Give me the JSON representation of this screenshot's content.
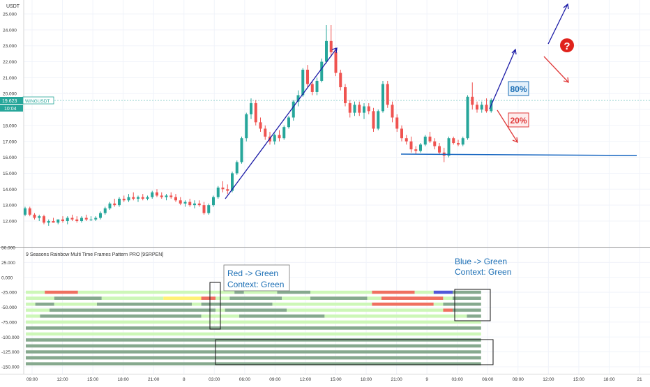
{
  "currency": "USDT",
  "price_tag": {
    "price": "19.623",
    "symbol": "WINGUSDT",
    "countdown": "10:04"
  },
  "indicator_title": "9 Seasons Rainbow Multi Time Frames Pattern PRO [9SRPEN]",
  "annotations": {
    "red_green": [
      "Red -> Green",
      "Context: Green"
    ],
    "blue_green": [
      "Blue -> Green",
      "Context: Green"
    ],
    "pct_up": "80%",
    "pct_down": "20%",
    "question": "?"
  },
  "colors": {
    "up": "#26a69a",
    "down": "#ef5350",
    "arrow": "#1a1aa6",
    "line": "#1565c0",
    "bar_light": "#cdf7b8",
    "bar_dark": "#86a98e",
    "bar_red": "#ef7060",
    "bar_yellow": "#fff176",
    "bar_blue": "#5057d8",
    "label": "#1c6fb5"
  },
  "chart_data": [
    {
      "type": "candlestick",
      "name": "WINGUSDT",
      "y_unit": "USDT",
      "ylim": [
        11.0,
        25.0
      ],
      "y_ticks": [
        "12.000",
        "13.000",
        "14.000",
        "15.000",
        "16.000",
        "17.000",
        "18.000",
        "19.000",
        "20.000",
        "21.000",
        "22.000",
        "23.000",
        "24.000",
        "25.000"
      ],
      "x_ticks": [
        "09:00",
        "12:00",
        "15:00",
        "18:00",
        "21:00",
        "8",
        "03:00",
        "06:00",
        "09:00",
        "12:00",
        "15:00",
        "18:00",
        "21:00",
        "9",
        "03:00",
        "06:00",
        "09:00",
        "12:00",
        "15:00",
        "18:00",
        "21"
      ],
      "horizontal_line": 16.1,
      "last_price": 19.623,
      "candles": [
        {
          "o": 12.4,
          "h": 12.9,
          "l": 12.3,
          "c": 12.8
        },
        {
          "o": 12.8,
          "h": 12.9,
          "l": 12.3,
          "c": 12.4
        },
        {
          "o": 12.4,
          "h": 12.5,
          "l": 12.1,
          "c": 12.2
        },
        {
          "o": 12.2,
          "h": 12.4,
          "l": 12.0,
          "c": 12.3
        },
        {
          "o": 12.3,
          "h": 12.4,
          "l": 11.8,
          "c": 11.9
        },
        {
          "o": 11.9,
          "h": 12.1,
          "l": 11.7,
          "c": 12.0
        },
        {
          "o": 12.0,
          "h": 12.2,
          "l": 11.9,
          "c": 11.9
        },
        {
          "o": 11.9,
          "h": 12.1,
          "l": 11.8,
          "c": 12.1
        },
        {
          "o": 12.1,
          "h": 12.3,
          "l": 11.9,
          "c": 12.0
        },
        {
          "o": 12.0,
          "h": 12.3,
          "l": 11.8,
          "c": 12.2
        },
        {
          "o": 12.2,
          "h": 12.4,
          "l": 12.0,
          "c": 12.1
        },
        {
          "o": 12.1,
          "h": 12.3,
          "l": 11.9,
          "c": 12.0
        },
        {
          "o": 12.0,
          "h": 12.3,
          "l": 11.9,
          "c": 12.2
        },
        {
          "o": 12.2,
          "h": 12.4,
          "l": 12.0,
          "c": 12.1
        },
        {
          "o": 12.1,
          "h": 12.3,
          "l": 12.0,
          "c": 12.1
        },
        {
          "o": 12.1,
          "h": 12.3,
          "l": 12.0,
          "c": 12.2
        },
        {
          "o": 12.2,
          "h": 12.6,
          "l": 12.1,
          "c": 12.5
        },
        {
          "o": 12.5,
          "h": 12.9,
          "l": 12.4,
          "c": 12.8
        },
        {
          "o": 12.8,
          "h": 13.2,
          "l": 12.7,
          "c": 13.1
        },
        {
          "o": 13.1,
          "h": 13.4,
          "l": 12.9,
          "c": 13.0
        },
        {
          "o": 13.0,
          "h": 13.5,
          "l": 12.9,
          "c": 13.4
        },
        {
          "o": 13.4,
          "h": 13.6,
          "l": 13.2,
          "c": 13.3
        },
        {
          "o": 13.3,
          "h": 13.7,
          "l": 13.2,
          "c": 13.5
        },
        {
          "o": 13.5,
          "h": 13.8,
          "l": 13.3,
          "c": 13.4
        },
        {
          "o": 13.4,
          "h": 13.6,
          "l": 13.2,
          "c": 13.5
        },
        {
          "o": 13.5,
          "h": 13.7,
          "l": 13.3,
          "c": 13.4
        },
        {
          "o": 13.4,
          "h": 13.6,
          "l": 13.3,
          "c": 13.5
        },
        {
          "o": 13.5,
          "h": 13.9,
          "l": 13.4,
          "c": 13.8
        },
        {
          "o": 13.8,
          "h": 14.0,
          "l": 13.5,
          "c": 13.6
        },
        {
          "o": 13.6,
          "h": 13.8,
          "l": 13.4,
          "c": 13.5
        },
        {
          "o": 13.5,
          "h": 13.7,
          "l": 13.3,
          "c": 13.6
        },
        {
          "o": 13.6,
          "h": 13.8,
          "l": 13.4,
          "c": 13.5
        },
        {
          "o": 13.5,
          "h": 13.7,
          "l": 13.2,
          "c": 13.3
        },
        {
          "o": 13.3,
          "h": 13.5,
          "l": 13.0,
          "c": 13.1
        },
        {
          "o": 13.1,
          "h": 13.3,
          "l": 12.9,
          "c": 13.2
        },
        {
          "o": 13.2,
          "h": 13.4,
          "l": 12.9,
          "c": 13.0
        },
        {
          "o": 13.0,
          "h": 13.3,
          "l": 12.8,
          "c": 13.1
        },
        {
          "o": 13.1,
          "h": 13.3,
          "l": 12.9,
          "c": 13.0
        },
        {
          "o": 13.0,
          "h": 13.2,
          "l": 12.4,
          "c": 12.5
        },
        {
          "o": 12.5,
          "h": 13.1,
          "l": 12.4,
          "c": 13.0
        },
        {
          "o": 13.0,
          "h": 13.6,
          "l": 12.9,
          "c": 13.5
        },
        {
          "o": 13.5,
          "h": 14.2,
          "l": 13.4,
          "c": 14.1
        },
        {
          "o": 14.1,
          "h": 14.5,
          "l": 13.8,
          "c": 14.0
        },
        {
          "o": 14.0,
          "h": 14.3,
          "l": 13.7,
          "c": 13.9
        },
        {
          "o": 13.9,
          "h": 15.1,
          "l": 13.8,
          "c": 15.0
        },
        {
          "o": 15.0,
          "h": 15.8,
          "l": 14.9,
          "c": 15.7
        },
        {
          "o": 15.7,
          "h": 17.3,
          "l": 15.6,
          "c": 17.2
        },
        {
          "o": 17.2,
          "h": 18.8,
          "l": 17.0,
          "c": 18.7
        },
        {
          "o": 18.7,
          "h": 19.7,
          "l": 18.4,
          "c": 19.4
        },
        {
          "o": 19.4,
          "h": 19.6,
          "l": 18.0,
          "c": 18.2
        },
        {
          "o": 18.2,
          "h": 18.5,
          "l": 17.6,
          "c": 17.8
        },
        {
          "o": 17.8,
          "h": 18.0,
          "l": 17.1,
          "c": 17.3
        },
        {
          "o": 17.3,
          "h": 17.6,
          "l": 16.8,
          "c": 17.0
        },
        {
          "o": 17.0,
          "h": 17.5,
          "l": 16.8,
          "c": 17.4
        },
        {
          "o": 17.4,
          "h": 17.7,
          "l": 17.0,
          "c": 17.2
        },
        {
          "o": 17.2,
          "h": 18.0,
          "l": 17.1,
          "c": 17.9
        },
        {
          "o": 17.9,
          "h": 18.6,
          "l": 17.8,
          "c": 18.5
        },
        {
          "o": 18.5,
          "h": 19.6,
          "l": 18.3,
          "c": 19.5
        },
        {
          "o": 19.5,
          "h": 20.2,
          "l": 19.2,
          "c": 19.9
        },
        {
          "o": 19.9,
          "h": 21.6,
          "l": 19.8,
          "c": 21.5
        },
        {
          "o": 21.5,
          "h": 21.8,
          "l": 20.4,
          "c": 20.6
        },
        {
          "o": 20.6,
          "h": 20.8,
          "l": 19.9,
          "c": 20.1
        },
        {
          "o": 20.1,
          "h": 21.0,
          "l": 19.9,
          "c": 20.8
        },
        {
          "o": 20.8,
          "h": 22.2,
          "l": 20.7,
          "c": 22.0
        },
        {
          "o": 22.0,
          "h": 24.3,
          "l": 21.9,
          "c": 23.3
        },
        {
          "o": 23.3,
          "h": 24.3,
          "l": 22.3,
          "c": 22.6
        },
        {
          "o": 22.6,
          "h": 22.9,
          "l": 21.1,
          "c": 21.3
        },
        {
          "o": 21.3,
          "h": 21.5,
          "l": 20.2,
          "c": 20.4
        },
        {
          "o": 20.4,
          "h": 20.6,
          "l": 19.2,
          "c": 19.4
        },
        {
          "o": 19.4,
          "h": 19.6,
          "l": 18.5,
          "c": 18.8
        },
        {
          "o": 18.8,
          "h": 19.5,
          "l": 18.6,
          "c": 19.3
        },
        {
          "o": 19.3,
          "h": 19.5,
          "l": 18.6,
          "c": 18.8
        },
        {
          "o": 18.8,
          "h": 19.4,
          "l": 18.4,
          "c": 19.2
        },
        {
          "o": 19.2,
          "h": 19.4,
          "l": 18.7,
          "c": 18.9
        },
        {
          "o": 18.9,
          "h": 19.1,
          "l": 17.6,
          "c": 17.8
        },
        {
          "o": 17.8,
          "h": 19.0,
          "l": 17.7,
          "c": 18.9
        },
        {
          "o": 18.9,
          "h": 20.8,
          "l": 18.8,
          "c": 20.6
        },
        {
          "o": 20.6,
          "h": 20.8,
          "l": 19.1,
          "c": 19.3
        },
        {
          "o": 19.3,
          "h": 19.5,
          "l": 18.2,
          "c": 18.5
        },
        {
          "o": 18.5,
          "h": 18.7,
          "l": 17.6,
          "c": 17.8
        },
        {
          "o": 17.8,
          "h": 18.0,
          "l": 17.0,
          "c": 17.2
        },
        {
          "o": 17.2,
          "h": 17.4,
          "l": 16.8,
          "c": 17.0
        },
        {
          "o": 17.0,
          "h": 17.3,
          "l": 16.3,
          "c": 16.5
        },
        {
          "o": 16.5,
          "h": 16.7,
          "l": 16.2,
          "c": 16.4
        },
        {
          "o": 16.4,
          "h": 16.9,
          "l": 16.3,
          "c": 16.8
        },
        {
          "o": 16.8,
          "h": 17.4,
          "l": 16.7,
          "c": 17.3
        },
        {
          "o": 17.3,
          "h": 17.6,
          "l": 16.9,
          "c": 17.0
        },
        {
          "o": 17.0,
          "h": 17.2,
          "l": 16.5,
          "c": 16.7
        },
        {
          "o": 16.7,
          "h": 16.9,
          "l": 16.2,
          "c": 16.3
        },
        {
          "o": 16.3,
          "h": 16.6,
          "l": 15.7,
          "c": 16.1
        },
        {
          "o": 16.1,
          "h": 17.3,
          "l": 16.0,
          "c": 17.2
        },
        {
          "o": 17.2,
          "h": 17.3,
          "l": 16.8,
          "c": 16.9
        },
        {
          "o": 16.9,
          "h": 17.1,
          "l": 16.7,
          "c": 16.8
        },
        {
          "o": 16.8,
          "h": 17.3,
          "l": 16.7,
          "c": 17.2
        },
        {
          "o": 17.2,
          "h": 19.9,
          "l": 17.1,
          "c": 19.8
        },
        {
          "o": 19.8,
          "h": 20.7,
          "l": 19.0,
          "c": 19.3
        },
        {
          "o": 19.3,
          "h": 19.5,
          "l": 18.8,
          "c": 19.0
        },
        {
          "o": 19.0,
          "h": 19.5,
          "l": 18.8,
          "c": 19.3
        },
        {
          "o": 19.3,
          "h": 19.7,
          "l": 18.8,
          "c": 18.9
        },
        {
          "o": 18.9,
          "h": 19.7,
          "l": 18.8,
          "c": 19.6
        }
      ]
    },
    {
      "type": "heatmap",
      "title": "9 Seasons Rainbow Multi Time Frames Pattern PRO [9SRPEN]",
      "ylim": [
        -150.0,
        50.0
      ],
      "y_ticks": [
        "-150.000",
        "-125.000",
        "-100.000",
        "-75.000",
        "-50.000",
        "-25.000",
        "0.000",
        "25.000",
        "50.000"
      ],
      "rows": [
        {
          "level": -25,
          "segments": [
            [
              "L",
              0,
              4
            ],
            [
              "R",
              4,
              11
            ],
            [
              "L",
              11,
              44
            ],
            [
              "D",
              44,
              46
            ],
            [
              "L",
              46,
              53
            ],
            [
              "D",
              53,
              60
            ],
            [
              "L",
              60,
              73
            ],
            [
              "R",
              73,
              82
            ],
            [
              "L",
              82,
              86
            ],
            [
              "B",
              86,
              90
            ],
            [
              "D",
              90,
              96
            ]
          ]
        },
        {
          "level": -35,
          "segments": [
            [
              "L",
              0,
              6
            ],
            [
              "D",
              6,
              16
            ],
            [
              "L",
              16,
              29
            ],
            [
              "Y",
              29,
              37
            ],
            [
              "R",
              37,
              40
            ],
            [
              "L",
              40,
              43
            ],
            [
              "D",
              43,
              54
            ],
            [
              "L",
              54,
              60
            ],
            [
              "D",
              60,
              72
            ],
            [
              "L",
              72,
              75
            ],
            [
              "R",
              75,
              88
            ],
            [
              "L",
              88,
              90
            ],
            [
              "D",
              90,
              96
            ]
          ]
        },
        {
          "level": -45,
          "segments": [
            [
              "L",
              0,
              2
            ],
            [
              "D",
              2,
              6
            ],
            [
              "L",
              6,
              15
            ],
            [
              "D",
              15,
              35
            ],
            [
              "L",
              35,
              37
            ],
            [
              "D",
              37,
              52
            ],
            [
              "L",
              52,
              73
            ],
            [
              "R",
              73,
              86
            ],
            [
              "L",
              86,
              88
            ],
            [
              "D",
              88,
              96
            ]
          ]
        },
        {
          "level": -55,
          "segments": [
            [
              "L",
              0,
              5
            ],
            [
              "D",
              5,
              40
            ],
            [
              "L",
              40,
              42
            ],
            [
              "D",
              42,
              55
            ],
            [
              "L",
              55,
              88
            ],
            [
              "R",
              88,
              90
            ],
            [
              "D",
              90,
              96
            ]
          ]
        },
        {
          "level": -65,
          "segments": [
            [
              "L",
              0,
              3
            ],
            [
              "D",
              3,
              37
            ],
            [
              "L",
              37,
              45
            ],
            [
              "D",
              45,
              63
            ],
            [
              "L",
              63,
              93
            ],
            [
              "D",
              93,
              96
            ]
          ]
        },
        {
          "level": -75,
          "segments": [
            [
              "L",
              0,
              96
            ]
          ]
        },
        {
          "level": -85,
          "segments": [
            [
              "D",
              0,
              96
            ]
          ]
        },
        {
          "level": -95,
          "segments": [
            [
              "L",
              0,
              96
            ]
          ]
        },
        {
          "level": -105,
          "segments": [
            [
              "D",
              0,
              96
            ]
          ]
        },
        {
          "level": -115,
          "segments": [
            [
              "D",
              0,
              96
            ]
          ]
        },
        {
          "level": -125,
          "segments": [
            [
              "D",
              0,
              96
            ]
          ]
        },
        {
          "level": -135,
          "segments": [
            [
              "D",
              0,
              96
            ]
          ]
        },
        {
          "level": -145,
          "segments": [
            [
              "D",
              0,
              96
            ]
          ]
        }
      ]
    }
  ]
}
